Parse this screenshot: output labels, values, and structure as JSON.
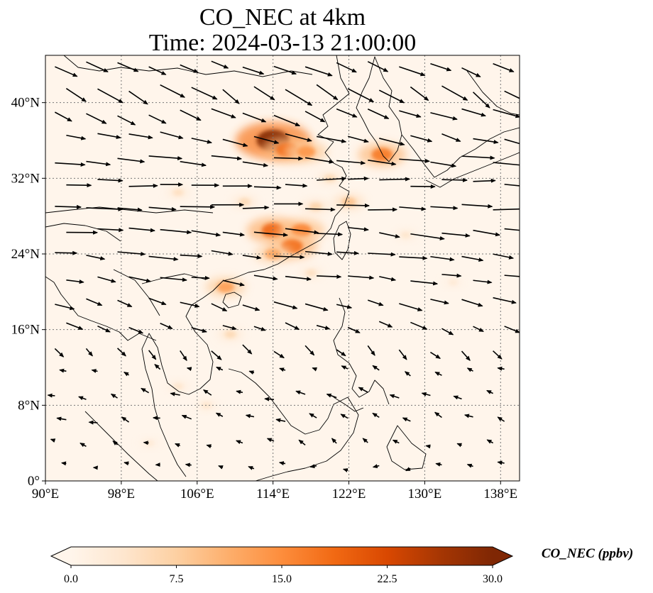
{
  "title": {
    "line1": "CO_NEC at 4km",
    "line2": "Time: 2024-03-13 21:00:00"
  },
  "map": {
    "lon_range": [
      90,
      140
    ],
    "lat_range": [
      0,
      45
    ],
    "lon_ticks": [
      {
        "value": 90,
        "label": "90°E"
      },
      {
        "value": 98,
        "label": "98°E"
      },
      {
        "value": 106,
        "label": "106°E"
      },
      {
        "value": 114,
        "label": "114°E"
      },
      {
        "value": 122,
        "label": "122°E"
      },
      {
        "value": 130,
        "label": "130°E"
      },
      {
        "value": 138,
        "label": "138°E"
      }
    ],
    "lat_ticks": [
      {
        "value": 0,
        "label": "0°"
      },
      {
        "value": 8,
        "label": "8°N"
      },
      {
        "value": 16,
        "label": "16°N"
      },
      {
        "value": 24,
        "label": "24°N"
      },
      {
        "value": 32,
        "label": "32°N"
      },
      {
        "value": 40,
        "label": "40°N"
      }
    ],
    "gridlines": true,
    "background_color": "#fff5eb",
    "concentration_hotspots": [
      {
        "lon": 114.0,
        "lat": 36.0,
        "value": 30
      },
      {
        "lon": 115.5,
        "lat": 35.0,
        "value": 18
      },
      {
        "lon": 117.5,
        "lat": 34.8,
        "value": 14
      },
      {
        "lon": 125.5,
        "lat": 34.5,
        "value": 17
      },
      {
        "lon": 114.0,
        "lat": 26.5,
        "value": 19
      },
      {
        "lon": 117.0,
        "lat": 26.5,
        "value": 16
      },
      {
        "lon": 116.0,
        "lat": 24.8,
        "value": 18
      },
      {
        "lon": 114.0,
        "lat": 24.0,
        "value": 12
      },
      {
        "lon": 109.0,
        "lat": 20.5,
        "value": 13
      },
      {
        "lon": 122.0,
        "lat": 29.5,
        "value": 9
      },
      {
        "lon": 111.0,
        "lat": 29.5,
        "value": 6
      },
      {
        "lon": 104.0,
        "lat": 30.5,
        "value": 5
      },
      {
        "lon": 118.5,
        "lat": 29.0,
        "value": 7
      },
      {
        "lon": 109.5,
        "lat": 15.5,
        "value": 6
      },
      {
        "lon": 120.0,
        "lat": 32.0,
        "value": 6
      },
      {
        "lon": 118.0,
        "lat": 22.0,
        "value": 5
      },
      {
        "lon": 128.0,
        "lat": 26.0,
        "value": 4
      },
      {
        "lon": 107.0,
        "lat": 8.0,
        "value": 4
      },
      {
        "lon": 104.0,
        "lat": 10.0,
        "value": 4
      },
      {
        "lon": 101.0,
        "lat": 4.0,
        "value": 3
      },
      {
        "lon": 133.0,
        "lat": 21.0,
        "value": 3
      }
    ],
    "wind_vectors": {
      "rows": [
        {
          "lat": 44.0,
          "u": 8,
          "v": -3
        },
        {
          "lat": 41.5,
          "u": 8,
          "v": -5
        },
        {
          "lat": 39.0,
          "u": 8,
          "v": -3
        },
        {
          "lat": 36.5,
          "u": 9,
          "v": -2
        },
        {
          "lat": 34.0,
          "u": 10,
          "v": -1
        },
        {
          "lat": 31.5,
          "u": 10,
          "v": 0
        },
        {
          "lat": 29.0,
          "u": 11,
          "v": 0
        },
        {
          "lat": 26.5,
          "u": 10,
          "v": -1
        },
        {
          "lat": 24.0,
          "u": 9,
          "v": -1
        },
        {
          "lat": 21.5,
          "u": 8,
          "v": -1
        },
        {
          "lat": 19.0,
          "u": 7,
          "v": -2
        },
        {
          "lat": 16.5,
          "u": 5,
          "v": -2
        },
        {
          "lat": 14.0,
          "u": 3,
          "v": -3
        },
        {
          "lat": 11.5,
          "u": -2,
          "v": 1
        },
        {
          "lat": 9.0,
          "u": -3,
          "v": 1
        },
        {
          "lat": 6.5,
          "u": -3,
          "v": 1
        },
        {
          "lat": 4.0,
          "u": -2,
          "v": 1
        },
        {
          "lat": 1.5,
          "u": -2,
          "v": 0
        }
      ],
      "lon_start": 91,
      "lon_step": 3.3
    }
  },
  "colorbar": {
    "colormap": [
      "#fff5eb",
      "#fee6ce",
      "#fdd0a2",
      "#fdae6b",
      "#fd8d3c",
      "#f16913",
      "#d94801",
      "#a63603",
      "#7f2704"
    ],
    "range": [
      0,
      30
    ],
    "ticks": [
      "0.0",
      "7.5",
      "15.0",
      "22.5",
      "30.0"
    ],
    "label": "CO_NEC (ppbv)"
  }
}
